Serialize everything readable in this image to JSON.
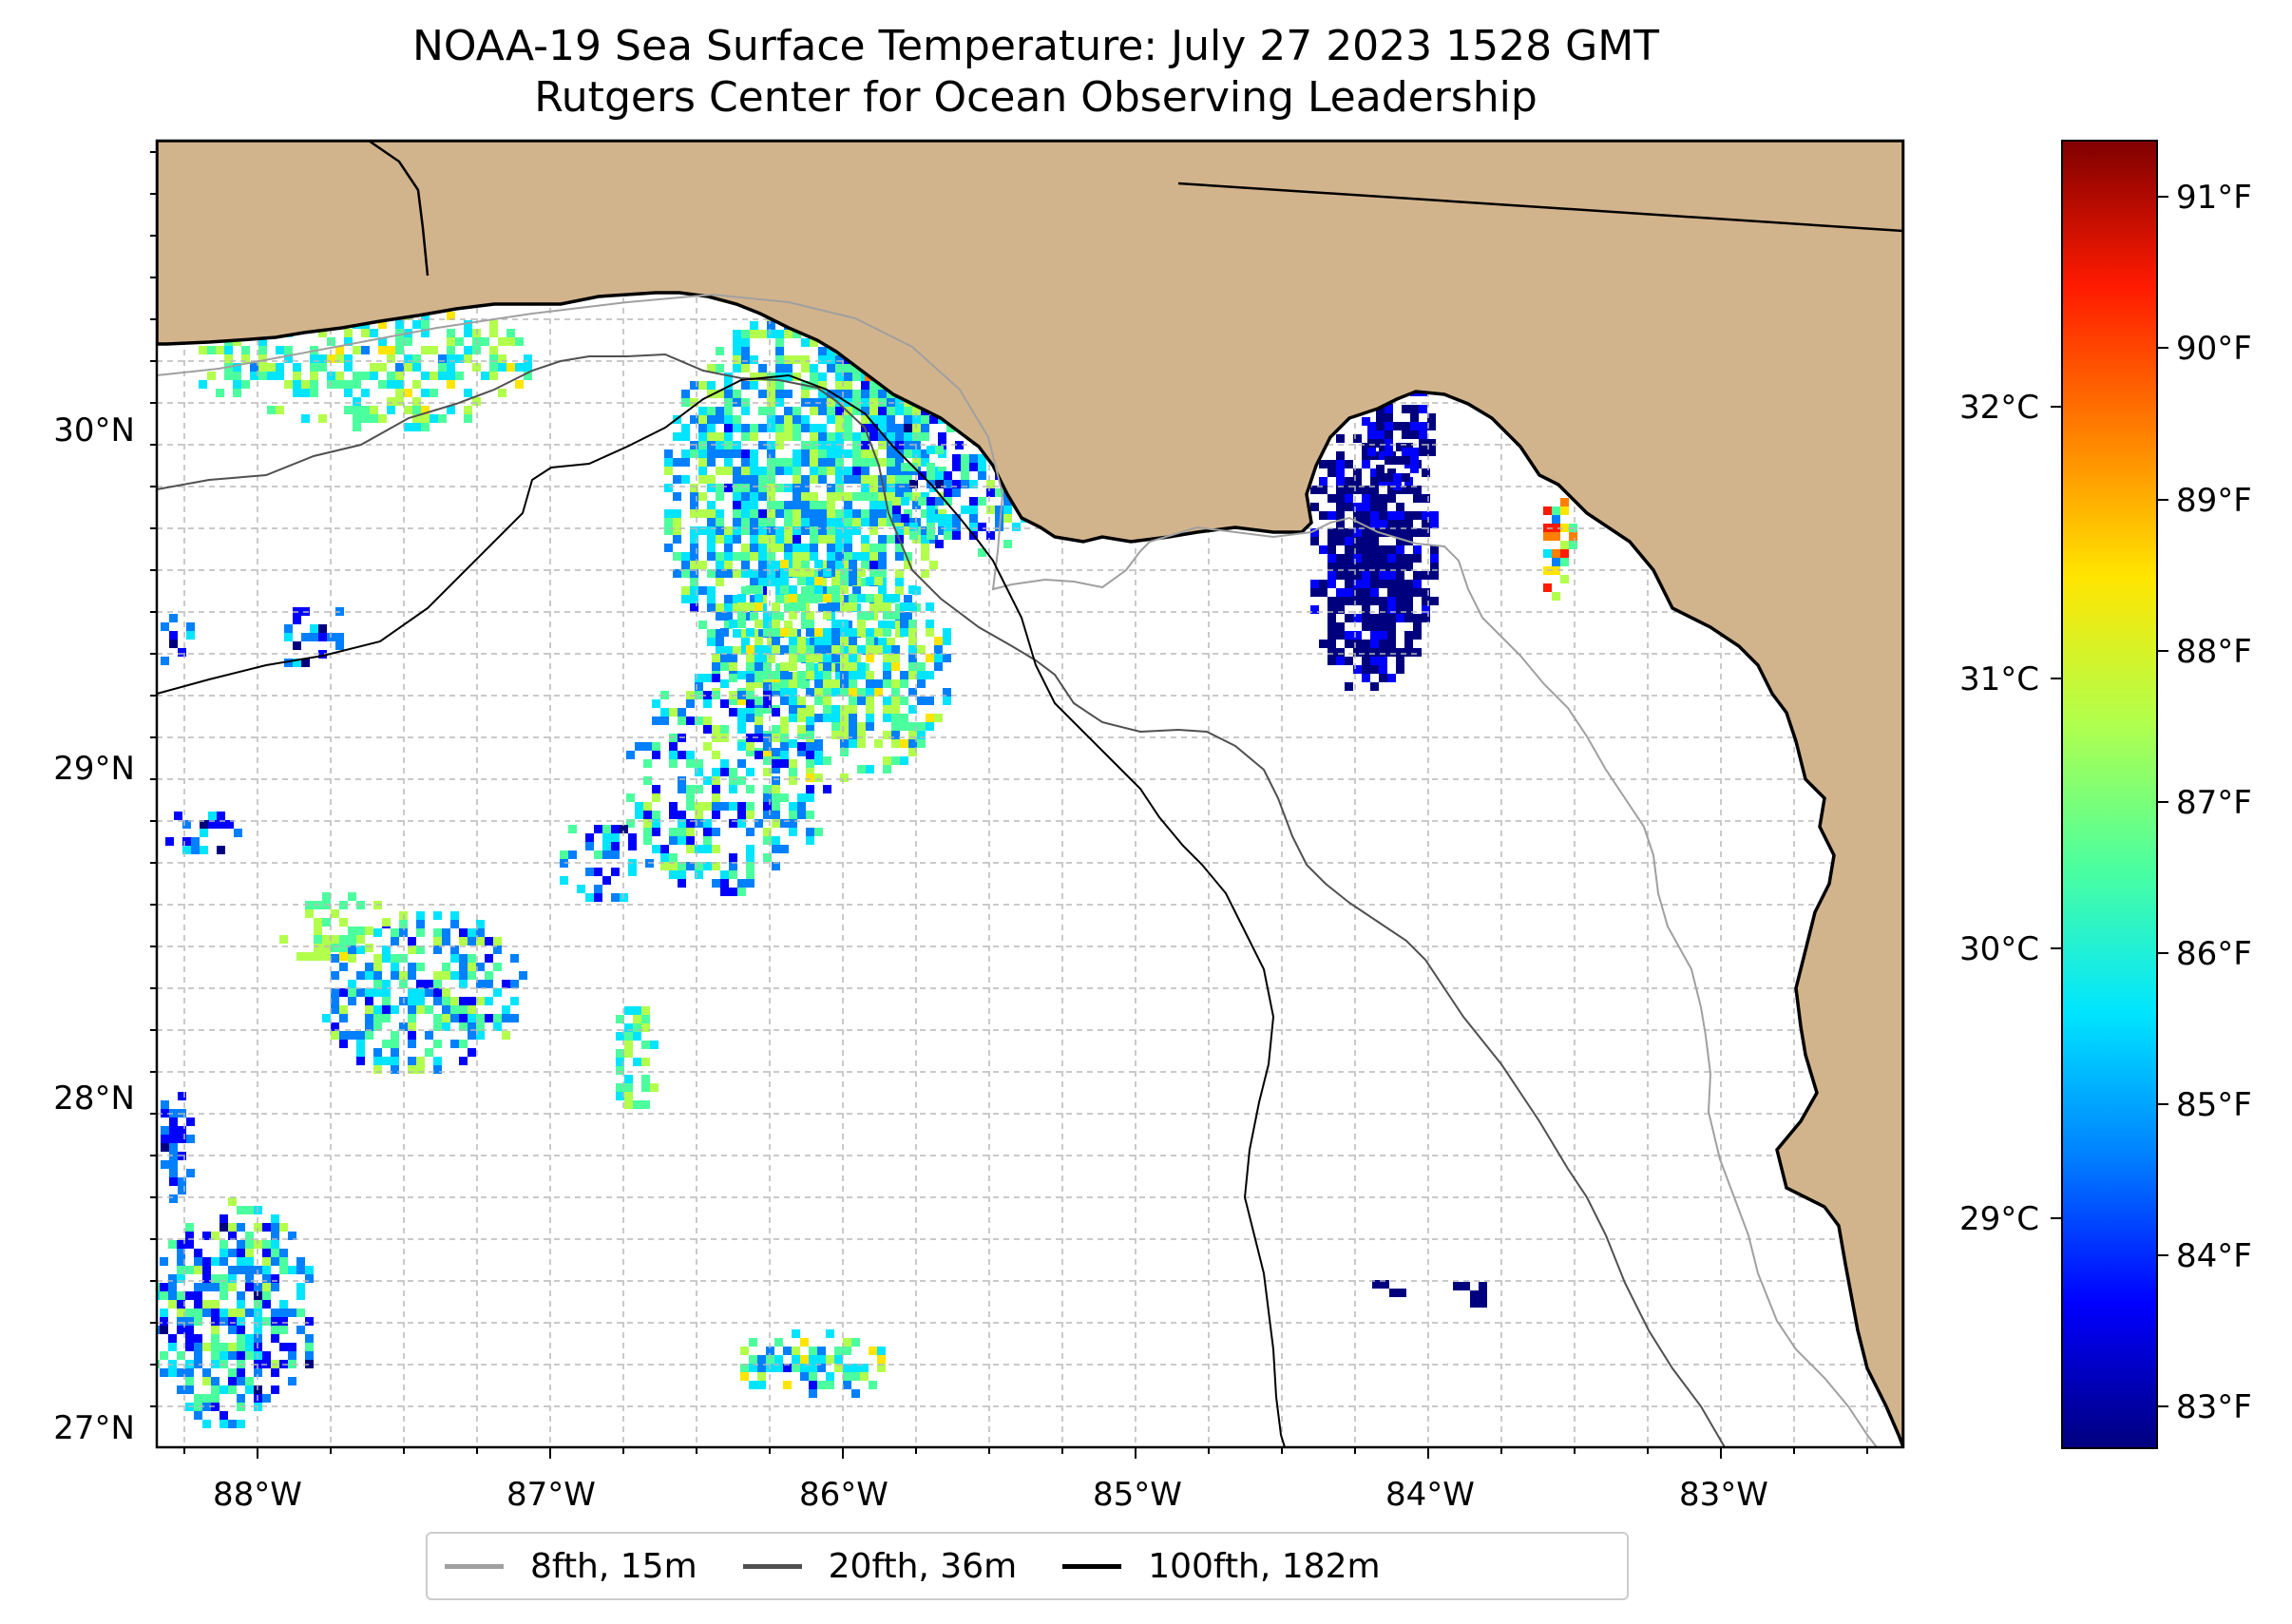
{
  "title": {
    "line1": "NOAA-19 Sea Surface Temperature: July 27 2023 1528 GMT",
    "line2": "Rutgers Center for Ocean Observing Leadership"
  },
  "map": {
    "lon_labels": [
      "88°W",
      "87°W",
      "86°W",
      "85°W",
      "84°W",
      "83°W"
    ],
    "lat_labels": [
      "30°N",
      "29°N",
      "28°N",
      "27°N"
    ],
    "colors": {
      "land": "#d2b48c",
      "coast": "#000000",
      "contour_15m": "#a0a0a0",
      "contour_36m": "#505050",
      "contour_182m": "#000000",
      "grid": "#b8b8b8",
      "lake": "#9ab8e0"
    }
  },
  "colorbar": {
    "fahrenheit_labels": [
      "91°F",
      "90°F",
      "89°F",
      "88°F",
      "87°F",
      "86°F",
      "85°F",
      "84°F",
      "83°F"
    ],
    "celsius_labels": [
      "32°C",
      "31°C",
      "30°C",
      "29°C"
    ],
    "colormap": [
      "#00007f",
      "#0000ff",
      "#007fff",
      "#00e5ff",
      "#4cff9e",
      "#b2ff4c",
      "#ffe500",
      "#ff7f00",
      "#ff1a00",
      "#7f0000"
    ]
  },
  "legend": {
    "items": [
      {
        "label": "8fth, 15m",
        "color": "#a0a0a0"
      },
      {
        "label": "20fth, 36m",
        "color": "#505050"
      },
      {
        "label": "100fth, 182m",
        "color": "#000000"
      }
    ]
  }
}
